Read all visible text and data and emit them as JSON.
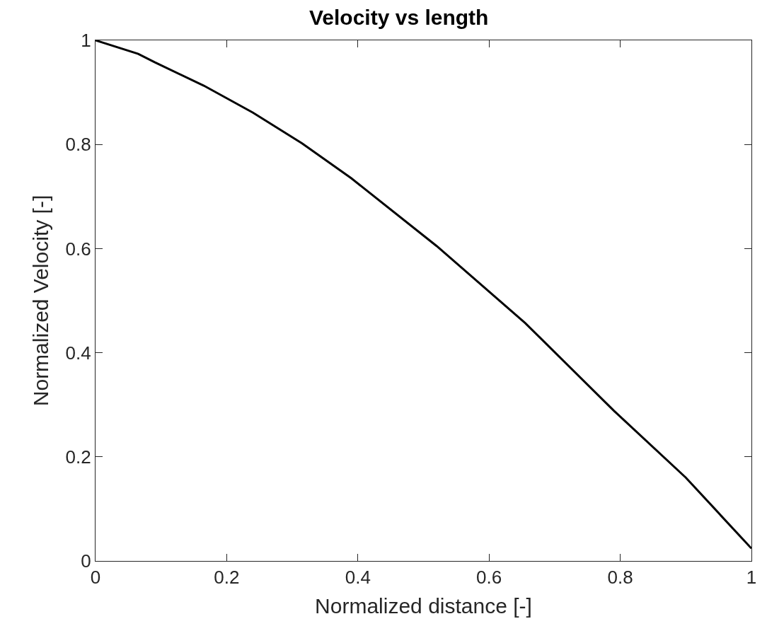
{
  "chart_data": {
    "type": "line",
    "title": "Velocity vs length",
    "xlabel": "Normalized distance [-]",
    "ylabel": "Normalized Velocity [-]",
    "x": [
      0,
      0.065,
      0.09,
      0.165,
      0.24,
      0.315,
      0.39,
      0.52,
      0.655,
      0.79,
      0.9,
      1.0
    ],
    "series": [
      {
        "color": "#000000",
        "values": [
          1,
          0.974,
          0.958,
          0.913,
          0.861,
          0.802,
          0.735,
          0.605,
          0.457,
          0.289,
          0.16,
          0.024
        ]
      }
    ],
    "xlim": [
      0,
      1
    ],
    "ylim": [
      0,
      1
    ],
    "xticks": [
      0,
      0.2,
      0.4,
      0.6,
      0.8,
      1
    ],
    "yticks": [
      0,
      0.2,
      0.4,
      0.6,
      0.8,
      1
    ],
    "grid": false,
    "legend": false,
    "marker": "none",
    "line_style": "solid"
  }
}
